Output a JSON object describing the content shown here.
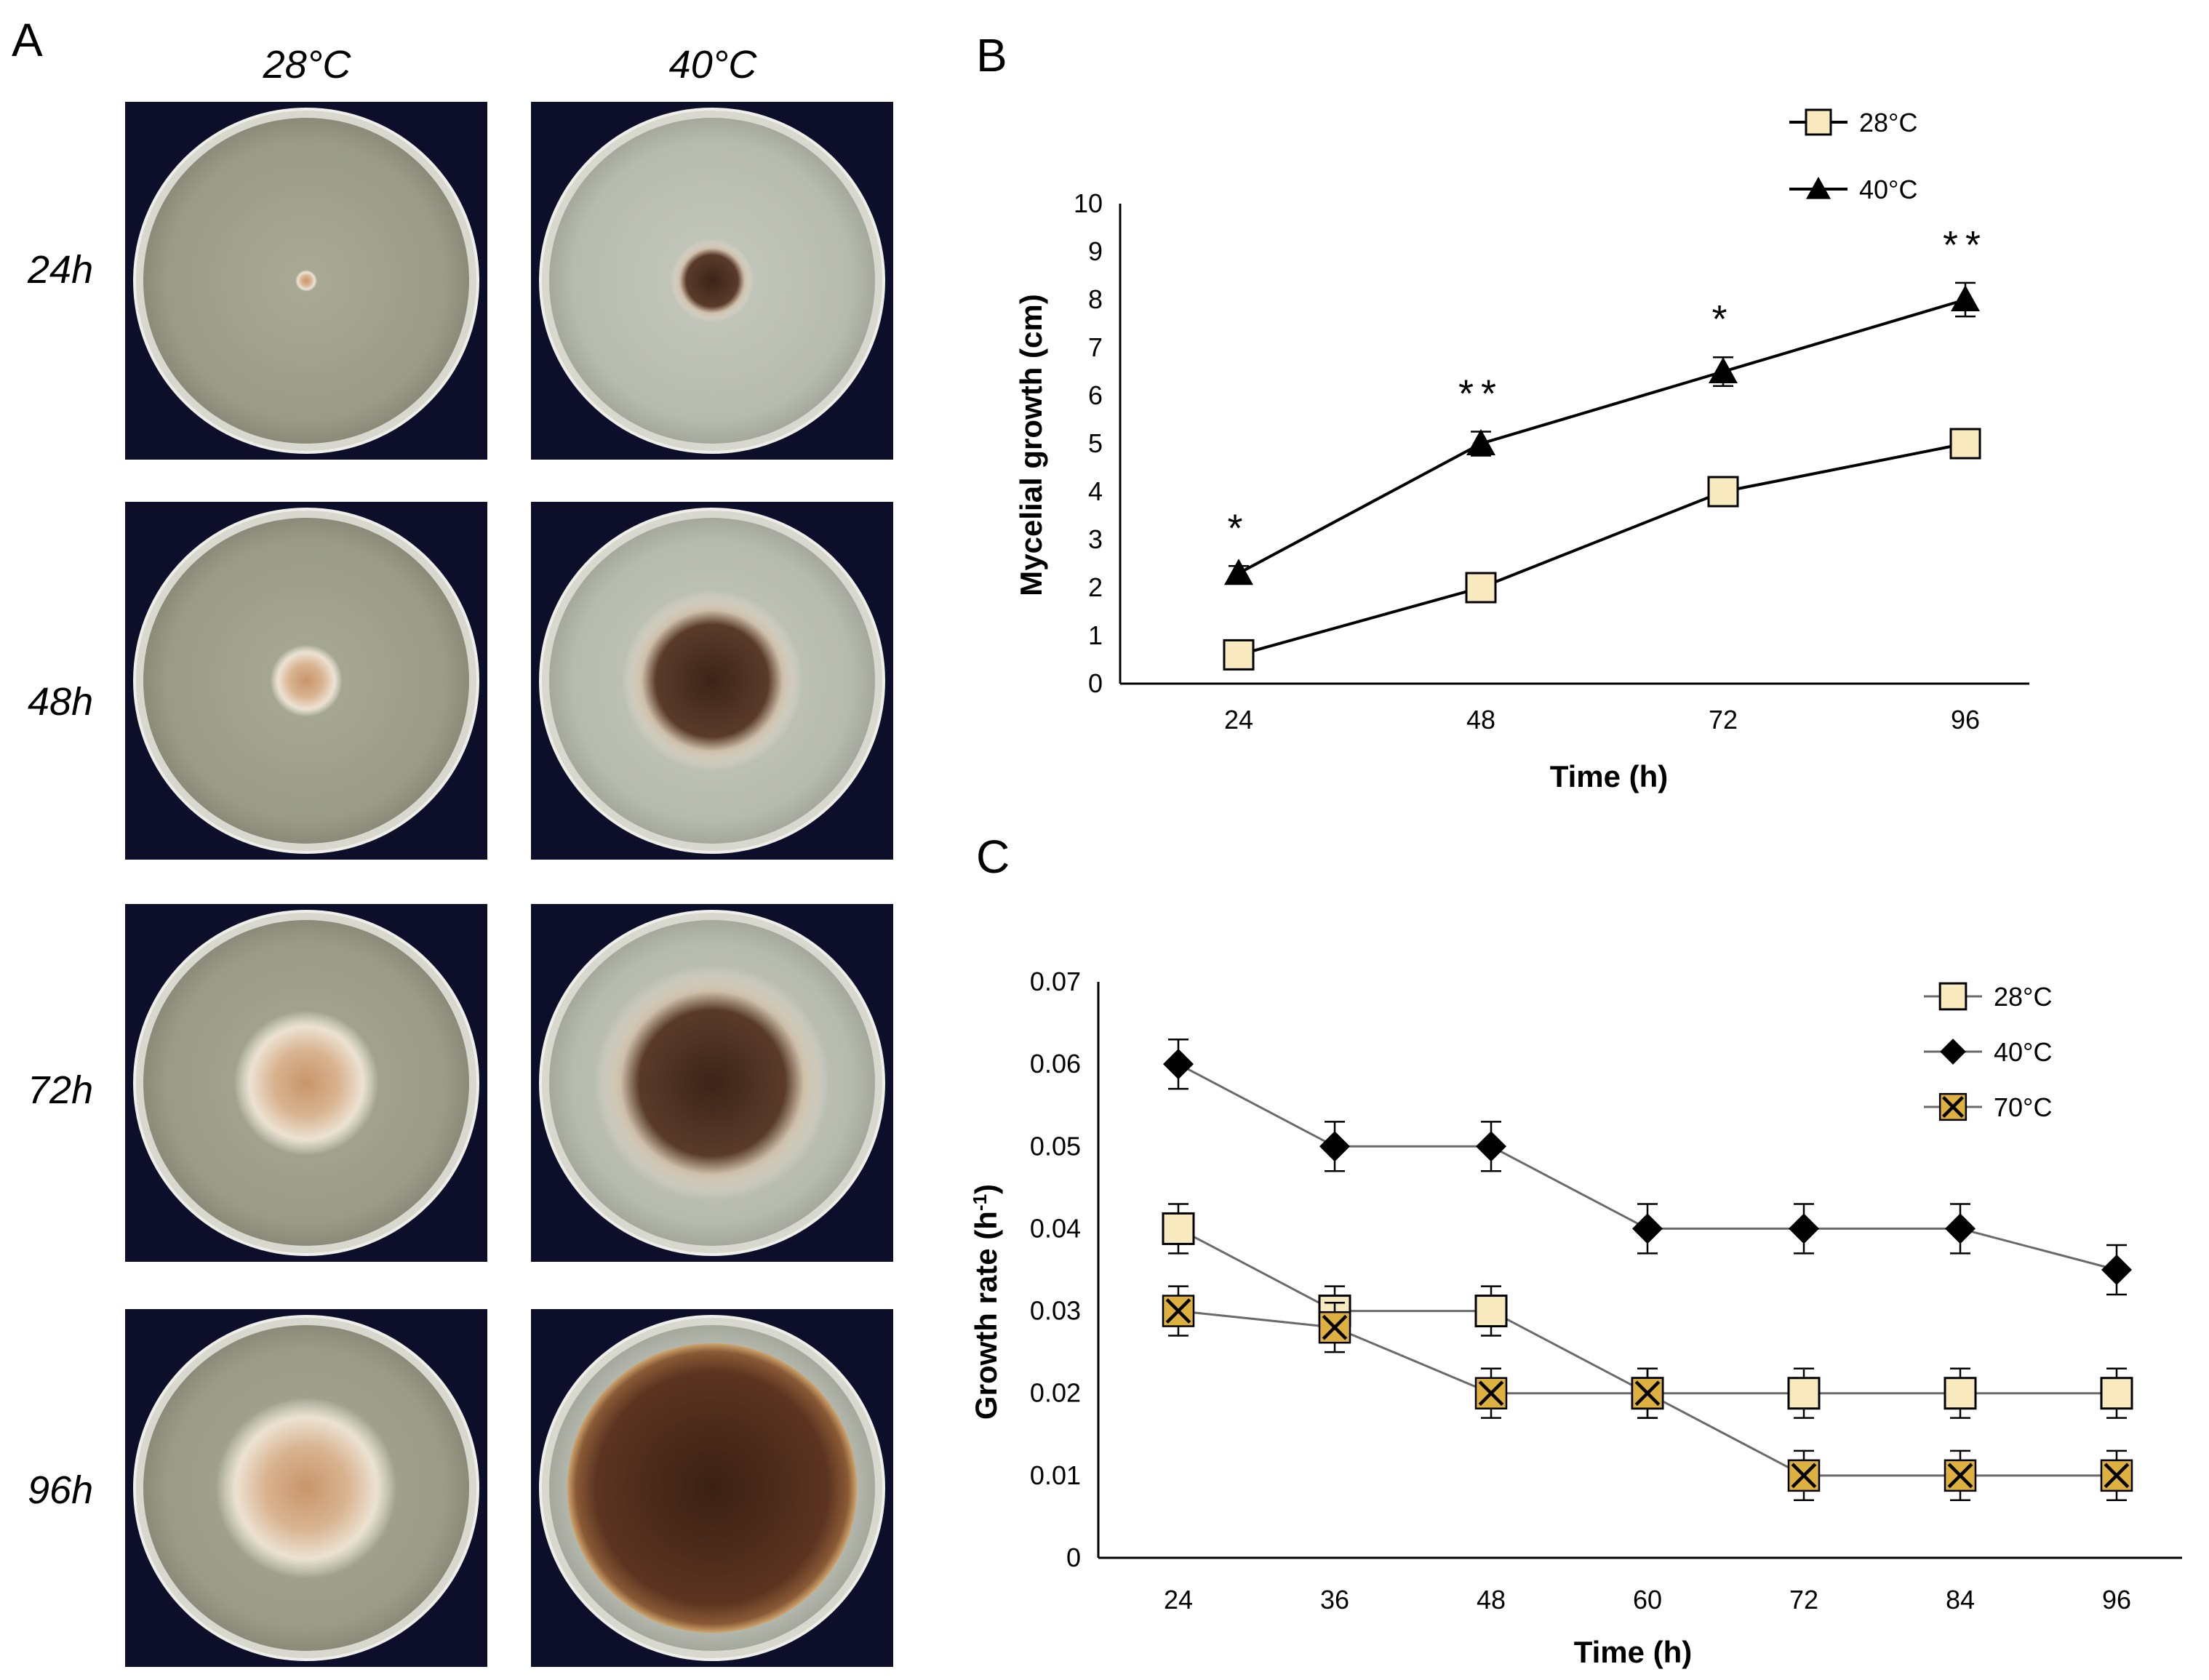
{
  "panel_a": {
    "label": "A",
    "columns": [
      "28°C",
      "40°C"
    ],
    "rows": [
      "24h",
      "48h",
      "72h",
      "96h"
    ],
    "plates": [
      {
        "time": "24h",
        "temp": "28°C",
        "colony_diameter_cm": 0.6
      },
      {
        "time": "24h",
        "temp": "40°C",
        "colony_diameter_cm": 2.3
      },
      {
        "time": "48h",
        "temp": "28°C",
        "colony_diameter_cm": 2.0
      },
      {
        "time": "48h",
        "temp": "40°C",
        "colony_diameter_cm": 5.0
      },
      {
        "time": "72h",
        "temp": "28°C",
        "colony_diameter_cm": 4.0
      },
      {
        "time": "72h",
        "temp": "40°C",
        "colony_diameter_cm": 6.5
      },
      {
        "time": "96h",
        "temp": "28°C",
        "colony_diameter_cm": 5.0
      },
      {
        "time": "96h",
        "temp": "40°C",
        "colony_diameter_cm": 8.0
      }
    ]
  },
  "chart_data": [
    {
      "panel": "B",
      "type": "line",
      "xlabel": "Time (h)",
      "ylabel": "Mycelial growth (cm)",
      "categories": [
        "24",
        "48",
        "72",
        "96"
      ],
      "ylim": [
        0,
        10
      ],
      "yticks": [
        "0",
        "1",
        "2",
        "3",
        "4",
        "5",
        "6",
        "7",
        "8",
        "9",
        "10"
      ],
      "legend_position": "top-right",
      "series": [
        {
          "name": "28°C",
          "marker": "square",
          "values": [
            0.6,
            2.0,
            4.0,
            5.0
          ],
          "errors": [
            0,
            0,
            0,
            0
          ]
        },
        {
          "name": "40°C",
          "marker": "triangle",
          "values": [
            2.3,
            5.0,
            6.5,
            8.0
          ],
          "errors": [
            0.15,
            0.25,
            0.3,
            0.35
          ]
        }
      ],
      "annotations": [
        "*",
        "**",
        "*",
        "**"
      ]
    },
    {
      "panel": "C",
      "type": "line",
      "xlabel": "Time (h)",
      "ylabel": "Growth rate (h",
      "ylabel_sup": "-1",
      "ylabel_end": ")",
      "categories": [
        "24",
        "36",
        "48",
        "60",
        "72",
        "84",
        "96"
      ],
      "ylim": [
        0,
        0.07
      ],
      "yticks": [
        "0",
        "0.01",
        "0.02",
        "0.03",
        "0.04",
        "0.05",
        "0.06",
        "0.07"
      ],
      "legend_position": "top-right",
      "series": [
        {
          "name": "28°C",
          "marker": "square",
          "values": [
            0.04,
            0.03,
            0.03,
            0.02,
            0.02,
            0.02,
            0.02
          ],
          "errors": [
            0.003,
            0.003,
            0.003,
            0.003,
            0.003,
            0.003,
            0.003
          ]
        },
        {
          "name": "40°C",
          "marker": "diamond",
          "values": [
            0.06,
            0.05,
            0.05,
            0.04,
            0.04,
            0.04,
            0.035
          ],
          "errors": [
            0.003,
            0.003,
            0.003,
            0.003,
            0.003,
            0.003,
            0.003
          ]
        },
        {
          "name": "70°C",
          "marker": "x-square",
          "values": [
            0.03,
            0.028,
            0.02,
            0.02,
            0.01,
            0.01,
            0.01
          ],
          "errors": [
            0.003,
            0.003,
            0.003,
            0.003,
            0.003,
            0.003,
            0.003
          ]
        }
      ]
    }
  ],
  "colors": {
    "plate_bg": "#0d0e2a",
    "square_fill": "#f8e9bf",
    "x_square_fill": "#ddb040",
    "line": "#000000",
    "light_line": "#6a6a6a"
  }
}
